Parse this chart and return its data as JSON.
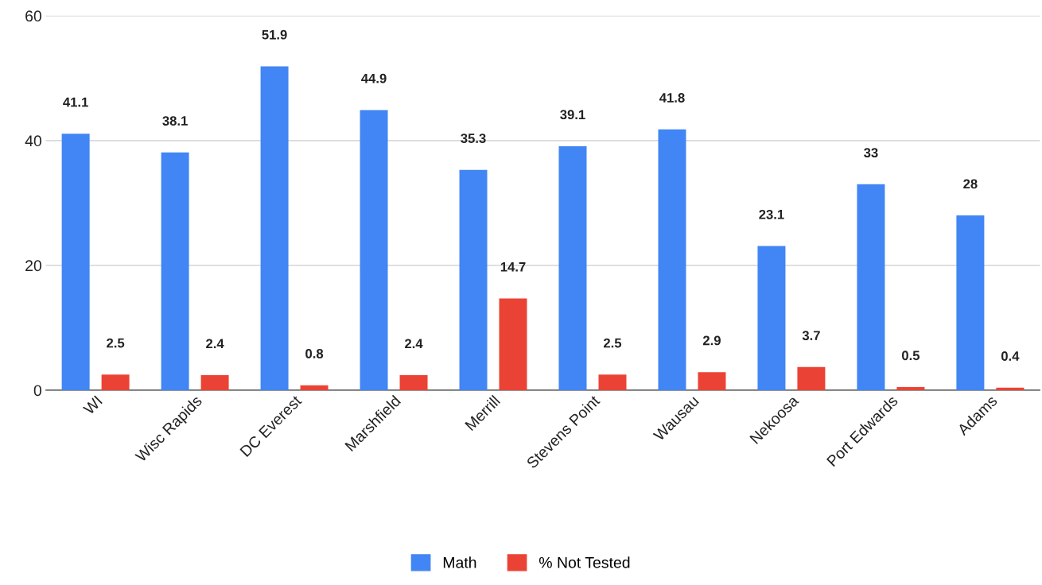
{
  "chart_data": {
    "type": "bar",
    "categories": [
      "WI",
      "Wisc Rapids",
      "DC Everest",
      "Marshfield",
      "Merrill",
      "Stevens Point",
      "Wausau",
      "Nekoosa",
      "Port Edwards",
      "Adams"
    ],
    "series": [
      {
        "name": "Math",
        "color": "#4285f4",
        "values": [
          41.1,
          38.1,
          51.9,
          44.9,
          35.3,
          39.1,
          41.8,
          23.1,
          33,
          28
        ]
      },
      {
        "name": "% Not Tested",
        "color": "#ea4335",
        "values": [
          2.5,
          2.4,
          0.8,
          2.4,
          14.7,
          2.5,
          2.9,
          3.7,
          0.5,
          0.4
        ]
      }
    ],
    "ylim": [
      0,
      60
    ],
    "yticks": [
      0,
      20,
      40,
      60
    ],
    "grid": "y",
    "legend": "bottom",
    "data_labels": true
  }
}
